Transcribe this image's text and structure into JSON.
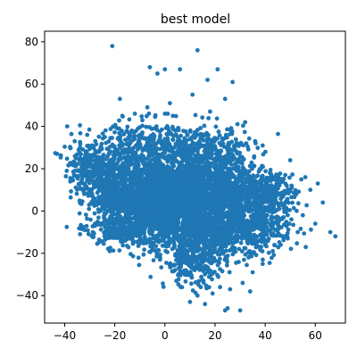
{
  "chart_data": {
    "type": "scatter",
    "title": "best model",
    "xlabel": "",
    "ylabel": "",
    "xlim": [
      -48,
      72
    ],
    "ylim": [
      -53,
      85
    ],
    "xticks": [
      -40,
      -20,
      0,
      20,
      40,
      60
    ],
    "yticks": [
      -40,
      -20,
      0,
      20,
      40,
      60,
      80
    ],
    "xtick_labels": [
      "−40",
      "−20",
      "0",
      "20",
      "40",
      "60"
    ],
    "ytick_labels": [
      "−40",
      "−20",
      "0",
      "20",
      "40",
      "60",
      "80"
    ],
    "grid": false,
    "legend": "none",
    "color": "#1f77b4",
    "outliers": [
      [
        -21,
        78
      ],
      [
        13,
        76
      ],
      [
        -6,
        68
      ],
      [
        0,
        67
      ],
      [
        21,
        67
      ],
      [
        6,
        67
      ],
      [
        -3,
        65
      ],
      [
        17,
        62
      ],
      [
        27,
        61
      ],
      [
        -18,
        53
      ],
      [
        -7,
        49
      ],
      [
        0,
        46
      ],
      [
        -39,
        40
      ],
      [
        -43,
        27
      ],
      [
        -36,
        33
      ],
      [
        -31,
        36
      ],
      [
        -29,
        31
      ],
      [
        -24,
        35
      ],
      [
        -22,
        -19
      ],
      [
        -17,
        45
      ],
      [
        -12,
        46
      ],
      [
        2,
        51
      ],
      [
        11,
        55
      ],
      [
        18,
        47
      ],
      [
        24,
        53
      ],
      [
        32,
        42
      ],
      [
        36,
        33
      ],
      [
        39,
        31
      ],
      [
        48,
        17
      ],
      [
        50,
        24
      ],
      [
        47,
        14
      ],
      [
        56,
        16
      ],
      [
        58,
        10
      ],
      [
        61,
        13
      ],
      [
        63,
        4
      ],
      [
        55,
        -2
      ],
      [
        66,
        -10
      ],
      [
        68,
        -12
      ],
      [
        60,
        -6
      ],
      [
        53,
        -10
      ],
      [
        49,
        -13
      ],
      [
        43,
        -19
      ],
      [
        39,
        -25
      ],
      [
        35,
        -29
      ],
      [
        31,
        -34
      ],
      [
        26,
        -37
      ],
      [
        22,
        -36
      ],
      [
        19,
        -39
      ],
      [
        24,
        -47
      ],
      [
        25,
        -46
      ],
      [
        30,
        -47
      ],
      [
        10,
        -43
      ],
      [
        13,
        -40
      ],
      [
        34,
        -38
      ],
      [
        16,
        -44
      ],
      [
        6,
        -30
      ],
      [
        4,
        -28
      ],
      [
        -5,
        -18
      ],
      [
        -9,
        -15
      ],
      [
        -2,
        -23
      ]
    ],
    "clusters": [
      {
        "x": 0,
        "y": 5,
        "sx": 10,
        "sy": 9,
        "n": 2000
      },
      {
        "x": -22,
        "y": 12,
        "sx": 6,
        "sy": 8,
        "n": 500
      },
      {
        "x": -32,
        "y": 22,
        "sx": 4,
        "sy": 6,
        "n": 150
      },
      {
        "x": 18,
        "y": 10,
        "sx": 9,
        "sy": 8,
        "n": 700
      },
      {
        "x": 30,
        "y": 8,
        "sx": 8,
        "sy": 6,
        "n": 400
      },
      {
        "x": 42,
        "y": 8,
        "sx": 5,
        "sy": 5,
        "n": 180
      },
      {
        "x": 20,
        "y": -10,
        "sx": 12,
        "sy": 6,
        "n": 700
      },
      {
        "x": 12,
        "y": -24,
        "sx": 6,
        "sy": 6,
        "n": 260
      },
      {
        "x": -10,
        "y": 28,
        "sx": 9,
        "sy": 7,
        "n": 300
      },
      {
        "x": 5,
        "y": 28,
        "sx": 8,
        "sy": 7,
        "n": 260
      },
      {
        "x": 22,
        "y": 28,
        "sx": 7,
        "sy": 7,
        "n": 180
      },
      {
        "x": -15,
        "y": -9,
        "sx": 8,
        "sy": 4,
        "n": 260
      },
      {
        "x": 40,
        "y": -8,
        "sx": 7,
        "sy": 4,
        "n": 140
      }
    ]
  }
}
